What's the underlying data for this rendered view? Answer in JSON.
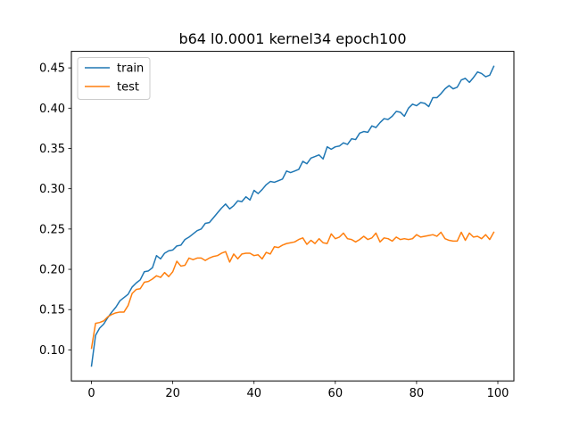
{
  "chart_data": {
    "type": "line",
    "title": "b64 l0.0001 kernel34 epoch100",
    "xlabel": "",
    "ylabel": "",
    "xlim": [
      -4.95,
      103.95
    ],
    "ylim": [
      0.0615,
      0.4705
    ],
    "xticks": [
      0,
      20,
      40,
      60,
      80,
      100
    ],
    "xtick_labels": [
      "0",
      "20",
      "40",
      "60",
      "80",
      "100"
    ],
    "yticks": [
      0.1,
      0.15,
      0.2,
      0.25,
      0.3,
      0.35,
      0.4,
      0.45
    ],
    "ytick_labels": [
      "0.10",
      "0.15",
      "0.20",
      "0.25",
      "0.30",
      "0.35",
      "0.40",
      "0.45"
    ],
    "grid": false,
    "legend_position": "top-left",
    "series": [
      {
        "name": "train",
        "color": "#1f77b4",
        "x": [
          0,
          1,
          2,
          3,
          4,
          5,
          6,
          7,
          8,
          9,
          10,
          11,
          12,
          13,
          14,
          15,
          16,
          17,
          18,
          19,
          20,
          21,
          22,
          23,
          24,
          25,
          26,
          27,
          28,
          29,
          30,
          31,
          32,
          33,
          34,
          35,
          36,
          37,
          38,
          39,
          40,
          41,
          42,
          43,
          44,
          45,
          46,
          47,
          48,
          49,
          50,
          51,
          52,
          53,
          54,
          55,
          56,
          57,
          58,
          59,
          60,
          61,
          62,
          63,
          64,
          65,
          66,
          67,
          68,
          69,
          70,
          71,
          72,
          73,
          74,
          75,
          76,
          77,
          78,
          79,
          80,
          81,
          82,
          83,
          84,
          85,
          86,
          87,
          88,
          89,
          90,
          91,
          92,
          93,
          94,
          95,
          96,
          97,
          98,
          99
        ],
        "values": [
          0.08,
          0.118,
          0.127,
          0.132,
          0.14,
          0.147,
          0.153,
          0.161,
          0.165,
          0.169,
          0.178,
          0.183,
          0.187,
          0.197,
          0.198,
          0.202,
          0.217,
          0.213,
          0.22,
          0.223,
          0.224,
          0.229,
          0.23,
          0.237,
          0.24,
          0.244,
          0.248,
          0.25,
          0.257,
          0.258,
          0.264,
          0.27,
          0.276,
          0.281,
          0.275,
          0.279,
          0.285,
          0.284,
          0.29,
          0.286,
          0.298,
          0.294,
          0.299,
          0.305,
          0.309,
          0.308,
          0.31,
          0.312,
          0.322,
          0.32,
          0.322,
          0.324,
          0.334,
          0.331,
          0.338,
          0.34,
          0.342,
          0.337,
          0.352,
          0.349,
          0.352,
          0.353,
          0.357,
          0.355,
          0.362,
          0.361,
          0.369,
          0.371,
          0.37,
          0.378,
          0.376,
          0.382,
          0.387,
          0.386,
          0.39,
          0.396,
          0.395,
          0.39,
          0.4,
          0.405,
          0.403,
          0.407,
          0.406,
          0.402,
          0.413,
          0.413,
          0.418,
          0.424,
          0.428,
          0.424,
          0.426,
          0.435,
          0.437,
          0.432,
          0.438,
          0.445,
          0.443,
          0.439,
          0.441,
          0.452
        ]
      },
      {
        "name": "test",
        "color": "#ff7f0e",
        "x": [
          0,
          1,
          2,
          3,
          4,
          5,
          6,
          7,
          8,
          9,
          10,
          11,
          12,
          13,
          14,
          15,
          16,
          17,
          18,
          19,
          20,
          21,
          22,
          23,
          24,
          25,
          26,
          27,
          28,
          29,
          30,
          31,
          32,
          33,
          34,
          35,
          36,
          37,
          38,
          39,
          40,
          41,
          42,
          43,
          44,
          45,
          46,
          47,
          48,
          49,
          50,
          51,
          52,
          53,
          54,
          55,
          56,
          57,
          58,
          59,
          60,
          61,
          62,
          63,
          64,
          65,
          66,
          67,
          68,
          69,
          70,
          71,
          72,
          73,
          74,
          75,
          76,
          77,
          78,
          79,
          80,
          81,
          82,
          83,
          84,
          85,
          86,
          87,
          88,
          89,
          90,
          91,
          92,
          93,
          94,
          95,
          96,
          97,
          98,
          99
        ],
        "values": [
          0.102,
          0.133,
          0.134,
          0.136,
          0.141,
          0.144,
          0.146,
          0.147,
          0.147,
          0.155,
          0.17,
          0.175,
          0.176,
          0.184,
          0.185,
          0.188,
          0.192,
          0.19,
          0.196,
          0.191,
          0.197,
          0.21,
          0.204,
          0.205,
          0.214,
          0.212,
          0.214,
          0.214,
          0.211,
          0.214,
          0.216,
          0.217,
          0.22,
          0.222,
          0.209,
          0.219,
          0.213,
          0.219,
          0.22,
          0.22,
          0.217,
          0.218,
          0.213,
          0.221,
          0.219,
          0.228,
          0.227,
          0.23,
          0.232,
          0.233,
          0.234,
          0.237,
          0.239,
          0.231,
          0.236,
          0.232,
          0.238,
          0.233,
          0.232,
          0.244,
          0.238,
          0.24,
          0.245,
          0.238,
          0.237,
          0.234,
          0.237,
          0.241,
          0.237,
          0.239,
          0.245,
          0.234,
          0.239,
          0.238,
          0.235,
          0.24,
          0.237,
          0.238,
          0.237,
          0.238,
          0.243,
          0.24,
          0.241,
          0.242,
          0.243,
          0.241,
          0.246,
          0.238,
          0.236,
          0.235,
          0.235,
          0.246,
          0.236,
          0.245,
          0.24,
          0.241,
          0.238,
          0.243,
          0.237,
          0.246
        ]
      }
    ]
  }
}
